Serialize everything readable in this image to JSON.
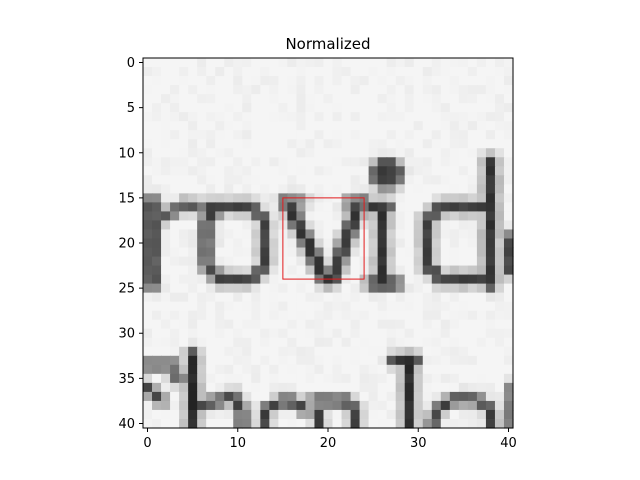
{
  "chart_data": {
    "type": "heatmap",
    "title": "Normalized",
    "xlabel": "",
    "ylabel": "",
    "colormap": "gray",
    "grid": false,
    "rows": 41,
    "cols": 41,
    "xlim": [
      -0.5,
      40.5
    ],
    "ylim": [
      40.5,
      -0.5
    ],
    "xticks": [
      0,
      10,
      20,
      30,
      40
    ],
    "yticks": [
      0,
      5,
      10,
      15,
      20,
      25,
      30,
      35,
      40
    ],
    "highlight_box": {
      "x_range": [
        15,
        24
      ],
      "y_range": [
        15,
        24
      ],
      "color": "#e31a1c"
    },
    "image_description": "grayscale crop of printed text showing the letters 'rovid' on top and partial letters on the bottom row; values are dark-ink intensities on a light background",
    "ink_strokes": [
      {
        "segments": [
          [
            0.5,
            15.5,
            0.5,
            24.5
          ]
        ],
        "w": 1.3,
        "v": 0.85
      },
      {
        "segments": [
          [
            2,
            17,
            4,
            15.8
          ],
          [
            4,
            15.8,
            5.5,
            16
          ]
        ],
        "w": 1.1,
        "v": 0.7
      },
      {
        "segments": [
          [
            6.5,
            16,
            11.5,
            16
          ],
          [
            11.5,
            16,
            13,
            17.5
          ],
          [
            13,
            17.5,
            13,
            22.5
          ],
          [
            13,
            22.5,
            11.5,
            24
          ],
          [
            11.5,
            24,
            8,
            24
          ],
          [
            8,
            24,
            6.5,
            22.5
          ],
          [
            6.5,
            22.5,
            6.5,
            17.5
          ],
          [
            6.5,
            17.5,
            8,
            16
          ]
        ],
        "w": 1.1,
        "v": 0.8
      },
      {
        "segments": [
          [
            15.5,
            15.5,
            19.7,
            24
          ],
          [
            19.7,
            24,
            20.5,
            24
          ],
          [
            20.5,
            24,
            23.5,
            15.5
          ]
        ],
        "w": 1.3,
        "v": 0.85
      },
      {
        "segments": [
          [
            15,
            15.5,
            17.2,
            15.5
          ],
          [
            22.2,
            15.5,
            24.3,
            15.5
          ]
        ],
        "w": 0.9,
        "v": 0.65
      },
      {
        "segments": [
          [
            26,
            16,
            26,
            24.5
          ],
          [
            25,
            16,
            26.5,
            16
          ],
          [
            24.8,
            24.5,
            27.5,
            24.5
          ]
        ],
        "w": 1.2,
        "v": 0.85
      },
      {
        "dot": [
          26.5,
          12.3
        ],
        "r": 1.2,
        "v": 0.8
      },
      {
        "segments": [
          [
            38,
            11,
            38,
            24.5
          ]
        ],
        "w": 1.3,
        "v": 0.85
      },
      {
        "segments": [
          [
            37.5,
            16,
            32.5,
            16
          ],
          [
            32.5,
            16,
            31,
            17.5
          ],
          [
            31,
            17.5,
            31,
            22.5
          ],
          [
            31,
            22.5,
            32.5,
            24
          ],
          [
            32.5,
            24,
            37.5,
            24
          ]
        ],
        "w": 1.2,
        "v": 0.8
      },
      {
        "segments": [
          [
            40.3,
            19.5,
            40.3,
            23
          ]
        ],
        "w": 1.0,
        "v": 0.9
      },
      {
        "segments": [
          [
            0,
            33.5,
            3,
            33.5
          ],
          [
            2.5,
            34,
            3.5,
            35
          ],
          [
            0,
            36,
            1.5,
            37.5
          ]
        ],
        "w": 1.0,
        "v": 0.75
      },
      {
        "segments": [
          [
            5,
            32.5,
            5,
            40.5
          ]
        ],
        "w": 1.2,
        "v": 0.9
      },
      {
        "segments": [
          [
            6,
            38,
            9.5,
            37
          ],
          [
            9.5,
            37,
            10.5,
            38.5
          ],
          [
            10.5,
            38.5,
            10.5,
            40.5
          ]
        ],
        "w": 1.0,
        "v": 0.8
      },
      {
        "segments": [
          [
            13,
            40.5,
            13,
            38.5
          ],
          [
            13,
            38.5,
            15.5,
            37.3
          ],
          [
            15.5,
            37.3,
            17.5,
            38.5
          ]
        ],
        "w": 1.0,
        "v": 0.8
      },
      {
        "segments": [
          [
            19,
            38.5,
            19,
            40.5
          ],
          [
            18.5,
            37.5,
            22,
            37.5
          ],
          [
            22,
            37.5,
            23,
            38.5
          ],
          [
            23,
            38.5,
            23,
            40.5
          ]
        ],
        "w": 1.0,
        "v": 0.8
      },
      {
        "segments": [
          [
            29,
            33,
            29,
            40.5
          ],
          [
            27.5,
            33,
            29.5,
            33
          ]
        ],
        "w": 1.2,
        "v": 0.9
      },
      {
        "segments": [
          [
            31.5,
            40.5,
            32,
            38.5
          ],
          [
            32,
            38.5,
            34,
            37.3
          ],
          [
            34,
            37.3,
            36.5,
            37.3
          ],
          [
            36.5,
            37.3,
            38,
            38.5
          ],
          [
            38,
            38.5,
            38.2,
            40.5
          ]
        ],
        "w": 1.0,
        "v": 0.8
      },
      {
        "segments": [
          [
            40.2,
            36,
            40.2,
            40.5
          ]
        ],
        "w": 0.8,
        "v": 0.6
      }
    ]
  }
}
